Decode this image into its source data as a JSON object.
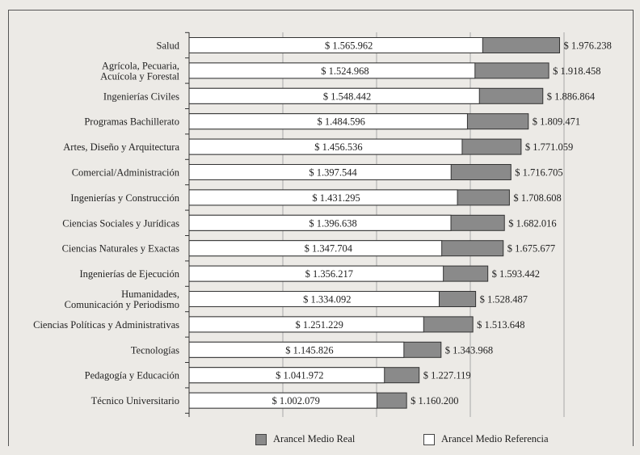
{
  "chart_data": {
    "type": "bar",
    "orientation": "horizontal",
    "stacked_overlay": true,
    "categories": [
      [
        "Salud"
      ],
      [
        "Agrícola, Pecuaria,",
        "Acuícola y Forestal"
      ],
      [
        "Ingenierías Civiles"
      ],
      [
        "Programas Bachillerato"
      ],
      [
        "Artes, Diseño y Arquitectura"
      ],
      [
        "Comercial/Administración"
      ],
      [
        "Ingenierías y Construcción"
      ],
      [
        "Ciencias Sociales y Jurídicas"
      ],
      [
        "Ciencias Naturales y Exactas"
      ],
      [
        "Ingenierías de Ejecución"
      ],
      [
        "Humanidades,",
        "Comunicación y Periodismo"
      ],
      [
        "Ciencias Políticas y Administrativas"
      ],
      [
        "Tecnologías"
      ],
      [
        "Pedagogía y Educación"
      ],
      [
        "Técnico Universitario"
      ]
    ],
    "series": [
      {
        "name": "Arancel Medio Referencia",
        "color": "#ffffff",
        "values": [
          1565962,
          1524968,
          1548442,
          1484596,
          1456536,
          1397544,
          1431295,
          1396638,
          1347704,
          1356217,
          1334092,
          1251229,
          1145826,
          1041972,
          1002079
        ],
        "labels": [
          "$ 1.565.962",
          "$ 1.524.968",
          "$ 1.548.442",
          "$ 1.484.596",
          "$ 1.456.536",
          "$ 1.397.544",
          "$ 1.431.295",
          "$ 1.396.638",
          "$ 1.347.704",
          "$ 1.356.217",
          "$ 1.334.092",
          "$ 1.251.229",
          "$ 1.145.826",
          "$ 1.041.972",
          "$ 1.002.079"
        ]
      },
      {
        "name": "Arancel Medio Real",
        "color": "#8a8a8a",
        "values": [
          1976238,
          1918458,
          1886864,
          1809471,
          1771059,
          1716705,
          1708608,
          1682016,
          1675677,
          1593442,
          1528487,
          1513648,
          1343968,
          1227119,
          1160200
        ],
        "labels": [
          "$ 1.976.238",
          "$ 1.918.458",
          "$ 1.886.864",
          "$ 1.809.471",
          "$ 1.771.059",
          "$ 1.716.705",
          "$ 1.708.608",
          "$ 1.682.016",
          "$ 1.675.677",
          "$ 1.593.442",
          "$ 1.528.487",
          "$ 1.513.648",
          "$ 1.343.968",
          "$ 1.227.119",
          "$ 1.160.200"
        ]
      }
    ],
    "xlim": [
      0,
      2250000
    ],
    "grid": true,
    "legend_position": "bottom"
  },
  "legend": {
    "real_label": "Arancel Medio Real",
    "ref_label": "Arancel Medio Referencia"
  }
}
